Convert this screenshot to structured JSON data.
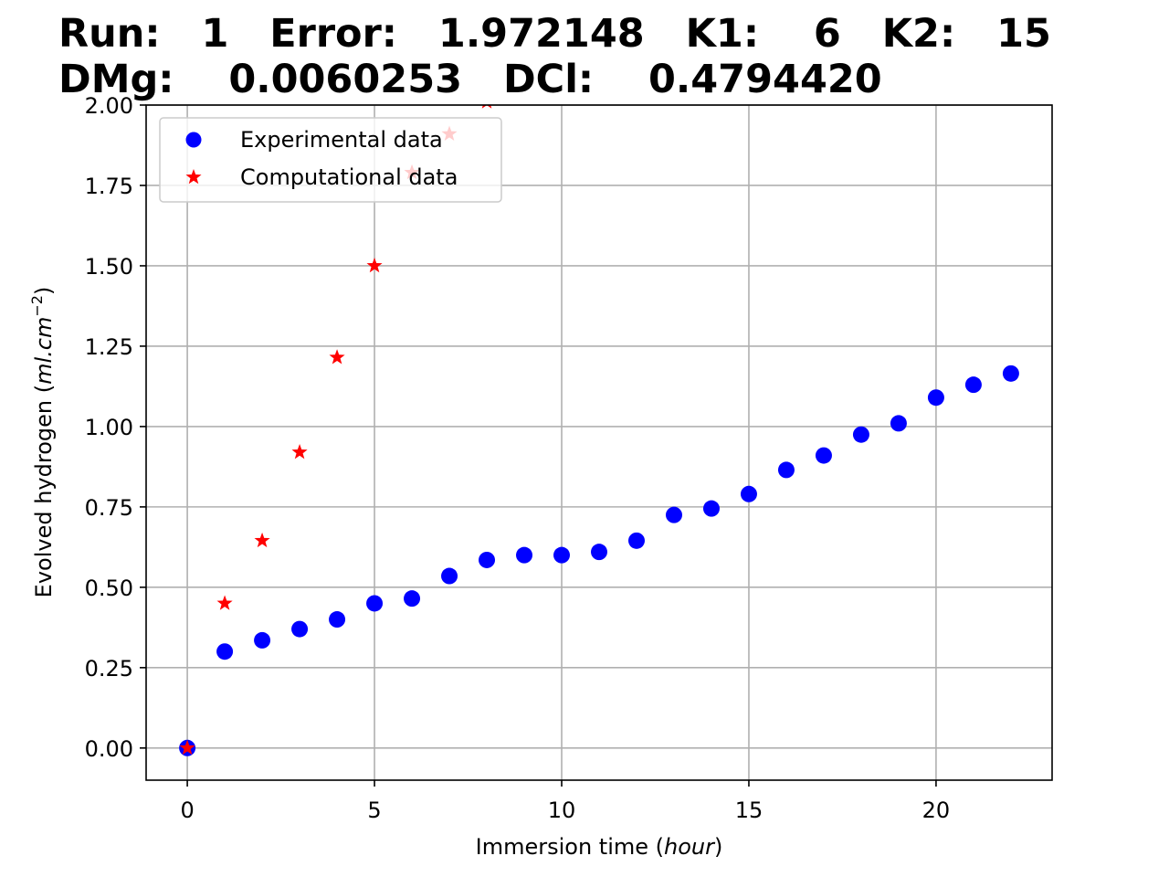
{
  "title_lines": [
    "Run:   1   Error:   1.972148   K1:    6   K2:   15",
    "DMg:    0.0060253   DCl:    0.4794420"
  ],
  "chart_data": {
    "type": "scatter",
    "xlabel_main": "Immersion time (",
    "xlabel_italic": "hour",
    "xlabel_end": ")",
    "ylabel_main": "Evolved hydrogen (",
    "ylabel_italic": "ml.cm",
    "ylabel_sup": "−2",
    "ylabel_end": ")",
    "xlim": [
      -1.1,
      23.1
    ],
    "ylim": [
      -0.1,
      2.0
    ],
    "x_ticks": [
      0,
      5,
      10,
      15,
      20
    ],
    "x_tick_labels": [
      "0",
      "5",
      "10",
      "15",
      "20"
    ],
    "y_ticks": [
      0,
      0.25,
      0.5,
      0.75,
      1.0,
      1.25,
      1.5,
      1.75,
      2.0
    ],
    "y_tick_labels": [
      "0.00",
      "0.25",
      "0.50",
      "0.75",
      "1.00",
      "1.25",
      "1.50",
      "1.75",
      "2.00"
    ],
    "grid": true,
    "legend_position": "top-left",
    "series": [
      {
        "name": "Experimental data",
        "marker": "circle",
        "color": "#0000ff",
        "x": [
          0,
          1,
          2,
          3,
          4,
          5,
          6,
          7,
          8,
          9,
          10,
          11,
          12,
          13,
          14,
          15,
          16,
          17,
          18,
          19,
          20,
          21,
          22
        ],
        "y": [
          0.0,
          0.3,
          0.335,
          0.37,
          0.4,
          0.45,
          0.465,
          0.535,
          0.585,
          0.6,
          0.6,
          0.61,
          0.645,
          0.725,
          0.745,
          0.79,
          0.865,
          0.91,
          0.975,
          1.01,
          1.09,
          1.13,
          1.165
        ]
      },
      {
        "name": "Computational data",
        "marker": "star",
        "color": "#ff0000",
        "x": [
          0,
          1,
          2,
          3,
          4,
          5,
          6,
          7,
          8
        ],
        "y": [
          0.0,
          0.45,
          0.645,
          0.92,
          1.215,
          1.5,
          1.79,
          1.91,
          2.01
        ]
      }
    ]
  }
}
